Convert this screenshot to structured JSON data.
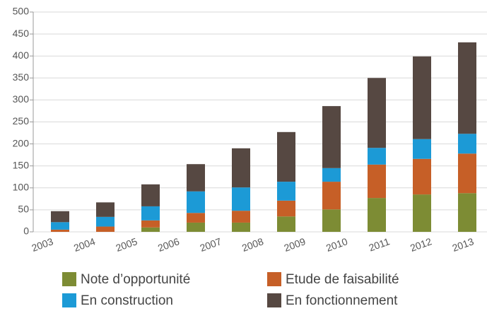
{
  "chart_data": {
    "type": "stacked_bar",
    "categories": [
      "2003",
      "2004",
      "2005",
      "2006",
      "2007",
      "2008",
      "2009",
      "2010",
      "2011",
      "2012",
      "2013"
    ],
    "series": [
      {
        "name": "Note d’opportunité",
        "color": "#7d8c34",
        "values": [
          0,
          0,
          10,
          21,
          21,
          35,
          51,
          77,
          85,
          88,
          null
        ]
      },
      {
        "name": "Etude de faisabilité",
        "color": "#c65f27",
        "values": [
          5,
          12,
          16,
          22,
          27,
          36,
          63,
          76,
          81,
          90,
          null
        ]
      },
      {
        "name": "En construction",
        "color": "#1c9ad6",
        "values": [
          17,
          22,
          32,
          49,
          53,
          43,
          31,
          38,
          45,
          45,
          null
        ]
      },
      {
        "name": "En fonctionnement",
        "color": "#564842",
        "values": [
          25,
          33,
          50,
          62,
          89,
          113,
          141,
          159,
          188,
          208,
          null
        ]
      }
    ],
    "ylim": [
      0,
      500
    ],
    "yticks": [
      0,
      50,
      100,
      150,
      200,
      250,
      300,
      350,
      400,
      450,
      500
    ],
    "grid": true
  }
}
